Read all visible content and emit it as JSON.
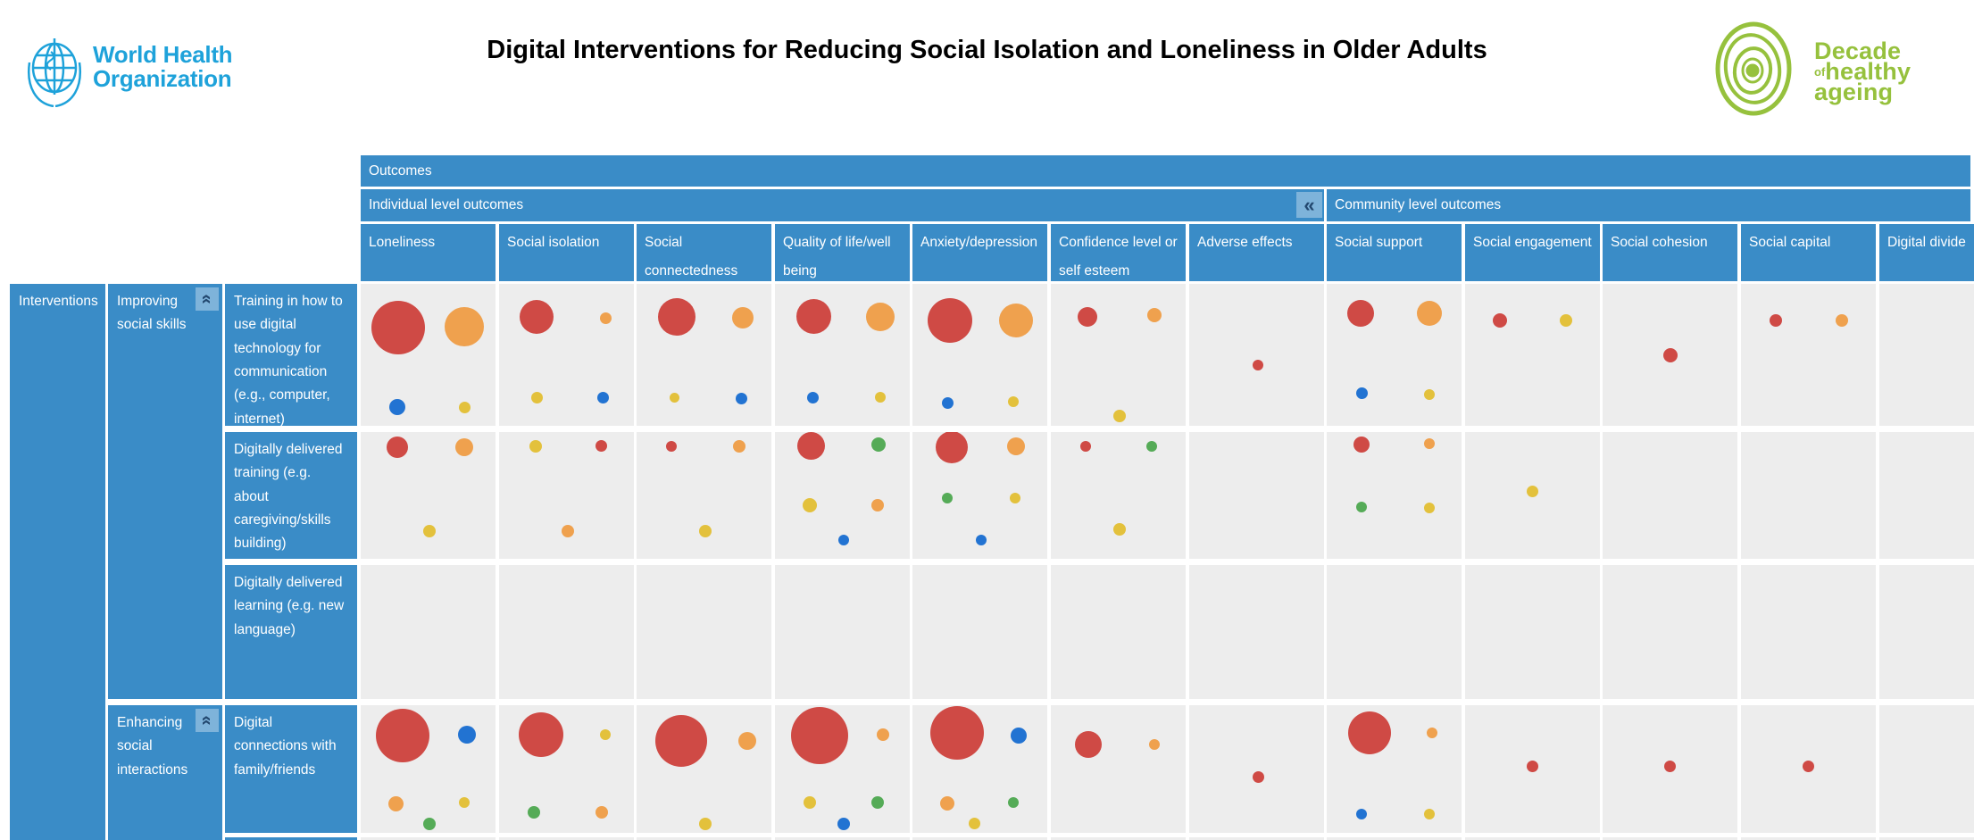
{
  "header": {
    "who_logo": {
      "line1": "World Health",
      "line2": "Organization",
      "color": "#1ea2da"
    },
    "title": "Digital Interventions for Reducing Social Isolation and Loneliness in Older Adults",
    "decade_logo": {
      "word1": "Decade",
      "word2_small": "of",
      "word2": "healthy",
      "word3": "ageing",
      "color": "#96c13d"
    }
  },
  "table": {
    "outcomes_label": "Outcomes",
    "groups": [
      {
        "label": "Individual level outcomes",
        "columns_span": 7
      },
      {
        "label": "Community level outcomes",
        "columns_span": 5
      }
    ],
    "collapse_icon": "«",
    "interventions_label": "Interventions",
    "row_groups": [
      {
        "label": "Improving social skills"
      },
      {
        "label": "Enhancing social interactions"
      }
    ],
    "colors": {
      "header_bg": "#3a8cc7",
      "cell_bg": "#ededed",
      "collapse_btn_bg": "#7eb3da",
      "collapse_glyph": "#23486f"
    }
  },
  "chart_data": {
    "type": "bubble-matrix",
    "title": "Digital Interventions for Reducing Social Isolation and Loneliness in Older Adults",
    "columns": [
      "Loneliness",
      "Social isolation",
      "Social connectedness",
      "Quality of life/well being",
      "Anxiety/depression",
      "Confidence level or self esteem",
      "Adverse effects",
      "Social support",
      "Social engagement",
      "Social cohesion",
      "Social capital",
      "Digital divide"
    ],
    "column_groups": [
      {
        "label": "Individual level outcomes",
        "span": 7
      },
      {
        "label": "Community level outcomes",
        "span": 5
      }
    ],
    "rows": [
      "Training in how to use digital technology for communication (e.g., computer, internet)",
      "Digitally delivered training (e.g. about caregiving/skills building)",
      "Digitally delivered learning (e.g. new language)",
      "Digital connections with family/friends"
    ],
    "row_groups": [
      {
        "label": "Improving social skills",
        "rows": [
          0,
          1,
          2
        ]
      },
      {
        "label": "Enhancing social interactions",
        "rows": [
          3
        ]
      }
    ],
    "palette": {
      "red": "#cf4a45",
      "orange": "#efa14e",
      "yellow": "#e3c13c",
      "blue": "#2273d2",
      "green": "#55ab57"
    },
    "bubble_format": [
      "color",
      "radius_px",
      "x_fraction",
      "y_fraction"
    ],
    "matrix": [
      [
        [
          [
            "R",
            30,
            0.28,
            0.31
          ],
          [
            "O",
            22,
            0.77,
            0.3
          ],
          [
            "B",
            9,
            0.27,
            0.87
          ],
          [
            "Y",
            6.5,
            0.77,
            0.87
          ]
        ],
        [
          [
            "R",
            19,
            0.28,
            0.23
          ],
          [
            "O",
            6.5,
            0.79,
            0.24
          ],
          [
            "Y",
            6.5,
            0.28,
            0.8
          ],
          [
            "B",
            6.5,
            0.77,
            0.8
          ]
        ],
        [
          [
            "R",
            21,
            0.3,
            0.23
          ],
          [
            "O",
            12,
            0.79,
            0.24
          ],
          [
            "Y",
            5.5,
            0.28,
            0.8
          ],
          [
            "B",
            6.5,
            0.78,
            0.81
          ]
        ],
        [
          [
            "R",
            19.5,
            0.29,
            0.23
          ],
          [
            "O",
            16,
            0.78,
            0.23
          ],
          [
            "B",
            6.5,
            0.28,
            0.8
          ],
          [
            "Y",
            6,
            0.78,
            0.8
          ]
        ],
        [
          [
            "R",
            25,
            0.28,
            0.26
          ],
          [
            "O",
            19,
            0.77,
            0.26
          ],
          [
            "B",
            6.5,
            0.26,
            0.84
          ],
          [
            "Y",
            6,
            0.75,
            0.83
          ]
        ],
        [
          [
            "R",
            11,
            0.27,
            0.23
          ],
          [
            "O",
            8,
            0.77,
            0.22
          ],
          [
            "Y",
            7,
            0.51,
            0.93
          ]
        ],
        [
          [
            "R",
            6,
            0.51,
            0.57
          ]
        ],
        [
          [
            "R",
            15,
            0.25,
            0.21
          ],
          [
            "O",
            14,
            0.76,
            0.21
          ],
          [
            "B",
            6.5,
            0.26,
            0.77
          ],
          [
            "Y",
            6,
            0.76,
            0.78
          ]
        ],
        [
          [
            "R",
            8,
            0.26,
            0.26
          ],
          [
            "Y",
            7,
            0.75,
            0.26
          ]
        ],
        [
          [
            "R",
            8,
            0.5,
            0.5
          ]
        ],
        [
          [
            "R",
            7,
            0.26,
            0.26
          ],
          [
            "O",
            7,
            0.75,
            0.26
          ]
        ],
        []
      ],
      [
        [
          [
            "R",
            12,
            0.27,
            0.12
          ],
          [
            "O",
            10,
            0.77,
            0.12
          ],
          [
            "Y",
            7,
            0.51,
            0.78
          ]
        ],
        [
          [
            "Y",
            7,
            0.27,
            0.11
          ],
          [
            "R",
            6.5,
            0.76,
            0.11
          ],
          [
            "O",
            7,
            0.51,
            0.78
          ]
        ],
        [
          [
            "R",
            6,
            0.26,
            0.11
          ],
          [
            "O",
            7,
            0.76,
            0.11
          ],
          [
            "Y",
            7,
            0.51,
            0.78
          ]
        ],
        [
          [
            "R",
            15.5,
            0.27,
            0.11
          ],
          [
            "G",
            8,
            0.77,
            0.1
          ],
          [
            "Y",
            8,
            0.26,
            0.58
          ],
          [
            "O",
            7,
            0.76,
            0.58
          ],
          [
            "B",
            6,
            0.51,
            0.85
          ]
        ],
        [
          [
            "R",
            18,
            0.29,
            0.12
          ],
          [
            "O",
            10,
            0.77,
            0.11
          ],
          [
            "G",
            6,
            0.26,
            0.52
          ],
          [
            "Y",
            6,
            0.76,
            0.52
          ],
          [
            "B",
            6,
            0.51,
            0.85
          ]
        ],
        [
          [
            "R",
            6,
            0.26,
            0.11
          ],
          [
            "G",
            6,
            0.75,
            0.11
          ],
          [
            "Y",
            7,
            0.51,
            0.77
          ]
        ],
        [],
        [
          [
            "R",
            9,
            0.26,
            0.1
          ],
          [
            "O",
            6,
            0.76,
            0.09
          ],
          [
            "G",
            6,
            0.26,
            0.59
          ],
          [
            "Y",
            6,
            0.76,
            0.6
          ]
        ],
        [
          [
            "Y",
            6.5,
            0.5,
            0.47
          ]
        ],
        [],
        [],
        []
      ],
      [
        [],
        [],
        [],
        [],
        [],
        [],
        [],
        [],
        [],
        [],
        [],
        []
      ],
      [
        [
          [
            "R",
            30,
            0.31,
            0.24
          ],
          [
            "B",
            10,
            0.79,
            0.23
          ],
          [
            "O",
            8.5,
            0.26,
            0.77
          ],
          [
            "Y",
            6,
            0.77,
            0.76
          ],
          [
            "G",
            7,
            0.51,
            0.93
          ]
        ],
        [
          [
            "R",
            25,
            0.31,
            0.23
          ],
          [
            "Y",
            6,
            0.79,
            0.23
          ],
          [
            "G",
            7,
            0.26,
            0.84
          ],
          [
            "O",
            7,
            0.76,
            0.84
          ]
        ],
        [
          [
            "R",
            29,
            0.33,
            0.28
          ],
          [
            "O",
            10,
            0.82,
            0.28
          ],
          [
            "Y",
            7,
            0.51,
            0.93
          ]
        ],
        [
          [
            "R",
            32,
            0.33,
            0.24
          ],
          [
            "O",
            7,
            0.8,
            0.23
          ],
          [
            "Y",
            7,
            0.26,
            0.76
          ],
          [
            "G",
            7,
            0.76,
            0.76
          ],
          [
            "B",
            7,
            0.51,
            0.93
          ]
        ],
        [
          [
            "R",
            30,
            0.33,
            0.22
          ],
          [
            "B",
            9,
            0.79,
            0.24
          ],
          [
            "O",
            8,
            0.26,
            0.77
          ],
          [
            "G",
            6,
            0.75,
            0.76
          ],
          [
            "Y",
            6.5,
            0.46,
            0.93
          ]
        ],
        [
          [
            "R",
            15,
            0.28,
            0.31
          ],
          [
            "O",
            6,
            0.77,
            0.31
          ]
        ],
        [
          [
            "R",
            6.5,
            0.51,
            0.56
          ]
        ],
        [
          [
            "R",
            24,
            0.32,
            0.22
          ],
          [
            "O",
            6,
            0.78,
            0.22
          ],
          [
            "B",
            6,
            0.26,
            0.85
          ],
          [
            "Y",
            6,
            0.76,
            0.85
          ]
        ],
        [
          [
            "R",
            6.5,
            0.5,
            0.48
          ]
        ],
        [
          [
            "R",
            6.5,
            0.5,
            0.48
          ]
        ],
        [
          [
            "R",
            6.5,
            0.5,
            0.48
          ]
        ],
        []
      ]
    ]
  }
}
